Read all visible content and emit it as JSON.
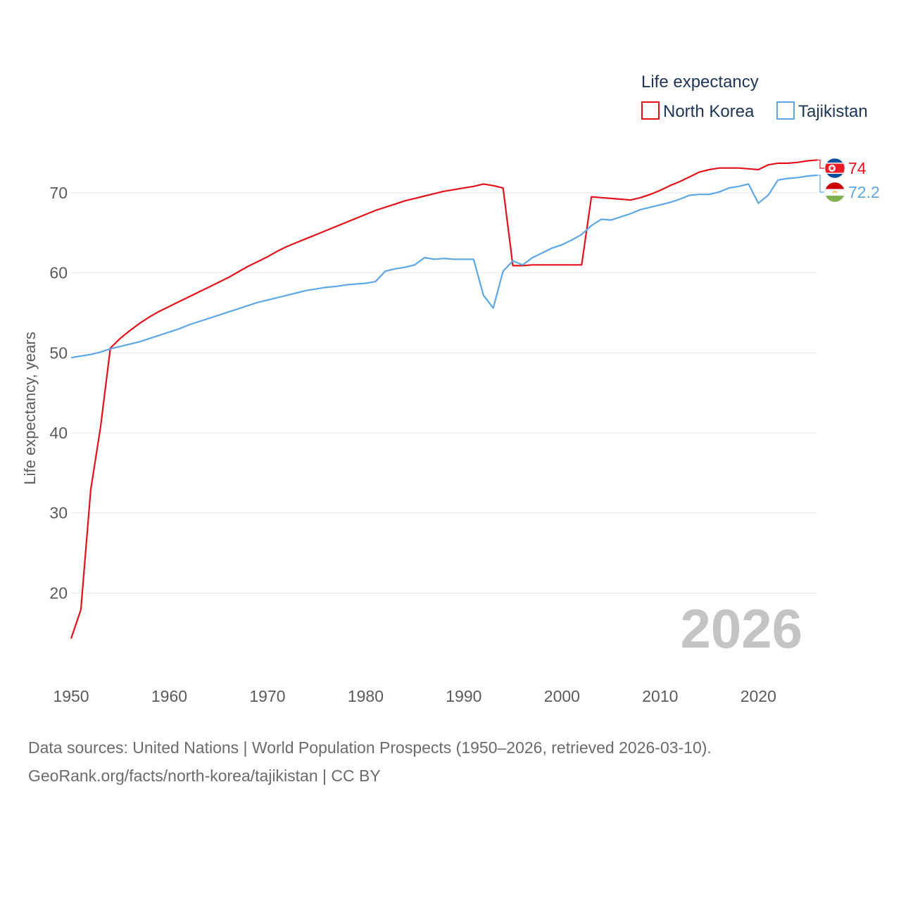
{
  "chart_data": {
    "type": "line",
    "title": "Life expectancy",
    "ylabel": "Life expectancy, years",
    "xlabel": "",
    "xlim": [
      1950,
      2026
    ],
    "ylim": [
      10,
      78
    ],
    "x_ticks": [
      1950,
      1960,
      1970,
      1980,
      1990,
      2000,
      2010,
      2020
    ],
    "y_ticks": [
      20,
      30,
      40,
      50,
      60,
      70
    ],
    "grid": true,
    "legend_position": "top-right",
    "current_year_label": "2026",
    "series": [
      {
        "name": "North Korea",
        "color": "#e3121a",
        "end_label": "74",
        "flag": "north-korea-flag-icon",
        "points": [
          [
            1950,
            14.3
          ],
          [
            1951,
            17.9
          ],
          [
            1952,
            32.9
          ],
          [
            1953,
            40.7
          ],
          [
            1954,
            50.6
          ],
          [
            1955,
            51.8
          ],
          [
            1956,
            52.8
          ],
          [
            1957,
            53.7
          ],
          [
            1958,
            54.5
          ],
          [
            1959,
            55.2
          ],
          [
            1960,
            55.8
          ],
          [
            1961,
            56.4
          ],
          [
            1962,
            57.0
          ],
          [
            1963,
            57.6
          ],
          [
            1964,
            58.2
          ],
          [
            1965,
            58.8
          ],
          [
            1966,
            59.4
          ],
          [
            1967,
            60.1
          ],
          [
            1968,
            60.8
          ],
          [
            1969,
            61.4
          ],
          [
            1970,
            62.0
          ],
          [
            1971,
            62.7
          ],
          [
            1972,
            63.3
          ],
          [
            1973,
            63.8
          ],
          [
            1974,
            64.3
          ],
          [
            1975,
            64.8
          ],
          [
            1976,
            65.3
          ],
          [
            1977,
            65.8
          ],
          [
            1978,
            66.3
          ],
          [
            1979,
            66.8
          ],
          [
            1980,
            67.3
          ],
          [
            1981,
            67.8
          ],
          [
            1982,
            68.2
          ],
          [
            1983,
            68.6
          ],
          [
            1984,
            69.0
          ],
          [
            1985,
            69.3
          ],
          [
            1986,
            69.6
          ],
          [
            1987,
            69.9
          ],
          [
            1988,
            70.2
          ],
          [
            1989,
            70.4
          ],
          [
            1990,
            70.6
          ],
          [
            1991,
            70.8
          ],
          [
            1992,
            71.1
          ],
          [
            1993,
            70.9
          ],
          [
            1994,
            70.6
          ],
          [
            1995,
            60.9
          ],
          [
            1996,
            60.9
          ],
          [
            1997,
            61.0
          ],
          [
            1998,
            61.0
          ],
          [
            1999,
            61.0
          ],
          [
            2000,
            61.0
          ],
          [
            2001,
            61.0
          ],
          [
            2002,
            61.0
          ],
          [
            2003,
            69.5
          ],
          [
            2004,
            69.4
          ],
          [
            2005,
            69.3
          ],
          [
            2006,
            69.2
          ],
          [
            2007,
            69.1
          ],
          [
            2008,
            69.4
          ],
          [
            2009,
            69.8
          ],
          [
            2010,
            70.3
          ],
          [
            2011,
            70.9
          ],
          [
            2012,
            71.4
          ],
          [
            2013,
            72.0
          ],
          [
            2014,
            72.6
          ],
          [
            2015,
            72.9
          ],
          [
            2016,
            73.1
          ],
          [
            2017,
            73.1
          ],
          [
            2018,
            73.1
          ],
          [
            2019,
            73.0
          ],
          [
            2020,
            72.9
          ],
          [
            2021,
            73.5
          ],
          [
            2022,
            73.7
          ],
          [
            2023,
            73.7
          ],
          [
            2024,
            73.8
          ],
          [
            2025,
            74.0
          ],
          [
            2026,
            74.1
          ]
        ]
      },
      {
        "name": "Tajikistan",
        "color": "#5ea7e7",
        "end_label": "72.2",
        "flag": "tajikistan-flag-icon",
        "points": [
          [
            1950,
            49.4
          ],
          [
            1951,
            49.6
          ],
          [
            1952,
            49.8
          ],
          [
            1953,
            50.1
          ],
          [
            1954,
            50.5
          ],
          [
            1955,
            50.8
          ],
          [
            1956,
            51.1
          ],
          [
            1957,
            51.4
          ],
          [
            1958,
            51.8
          ],
          [
            1959,
            52.2
          ],
          [
            1960,
            52.6
          ],
          [
            1961,
            53.0
          ],
          [
            1962,
            53.5
          ],
          [
            1963,
            53.9
          ],
          [
            1964,
            54.3
          ],
          [
            1965,
            54.7
          ],
          [
            1966,
            55.1
          ],
          [
            1967,
            55.5
          ],
          [
            1968,
            55.9
          ],
          [
            1969,
            56.3
          ],
          [
            1970,
            56.6
          ],
          [
            1971,
            56.9
          ],
          [
            1972,
            57.2
          ],
          [
            1973,
            57.5
          ],
          [
            1974,
            57.8
          ],
          [
            1975,
            58.0
          ],
          [
            1976,
            58.2
          ],
          [
            1977,
            58.3
          ],
          [
            1978,
            58.5
          ],
          [
            1979,
            58.6
          ],
          [
            1980,
            58.7
          ],
          [
            1981,
            58.9
          ],
          [
            1982,
            60.2
          ],
          [
            1983,
            60.5
          ],
          [
            1984,
            60.7
          ],
          [
            1985,
            61.0
          ],
          [
            1986,
            61.9
          ],
          [
            1987,
            61.7
          ],
          [
            1988,
            61.8
          ],
          [
            1989,
            61.7
          ],
          [
            1990,
            61.7
          ],
          [
            1991,
            61.7
          ],
          [
            1992,
            57.2
          ],
          [
            1993,
            55.6
          ],
          [
            1994,
            60.2
          ],
          [
            1995,
            61.5
          ],
          [
            1996,
            61.0
          ],
          [
            1997,
            61.9
          ],
          [
            1998,
            62.5
          ],
          [
            1999,
            63.1
          ],
          [
            2000,
            63.5
          ],
          [
            2001,
            64.1
          ],
          [
            2002,
            64.8
          ],
          [
            2003,
            65.9
          ],
          [
            2004,
            66.7
          ],
          [
            2005,
            66.6
          ],
          [
            2006,
            67.0
          ],
          [
            2007,
            67.4
          ],
          [
            2008,
            67.9
          ],
          [
            2009,
            68.2
          ],
          [
            2010,
            68.5
          ],
          [
            2011,
            68.8
          ],
          [
            2012,
            69.2
          ],
          [
            2013,
            69.7
          ],
          [
            2014,
            69.8
          ],
          [
            2015,
            69.8
          ],
          [
            2016,
            70.1
          ],
          [
            2017,
            70.6
          ],
          [
            2018,
            70.8
          ],
          [
            2019,
            71.1
          ],
          [
            2020,
            68.7
          ],
          [
            2021,
            69.7
          ],
          [
            2022,
            71.6
          ],
          [
            2023,
            71.8
          ],
          [
            2024,
            71.9
          ],
          [
            2025,
            72.1
          ],
          [
            2026,
            72.2
          ]
        ]
      }
    ]
  },
  "footer": {
    "sources": "Data sources: United Nations | World Population Prospects (1950–2026, retrieved 2026-03-10).",
    "attribution": "GeoRank.org/facts/north-korea/tajikistan | CC BY"
  }
}
